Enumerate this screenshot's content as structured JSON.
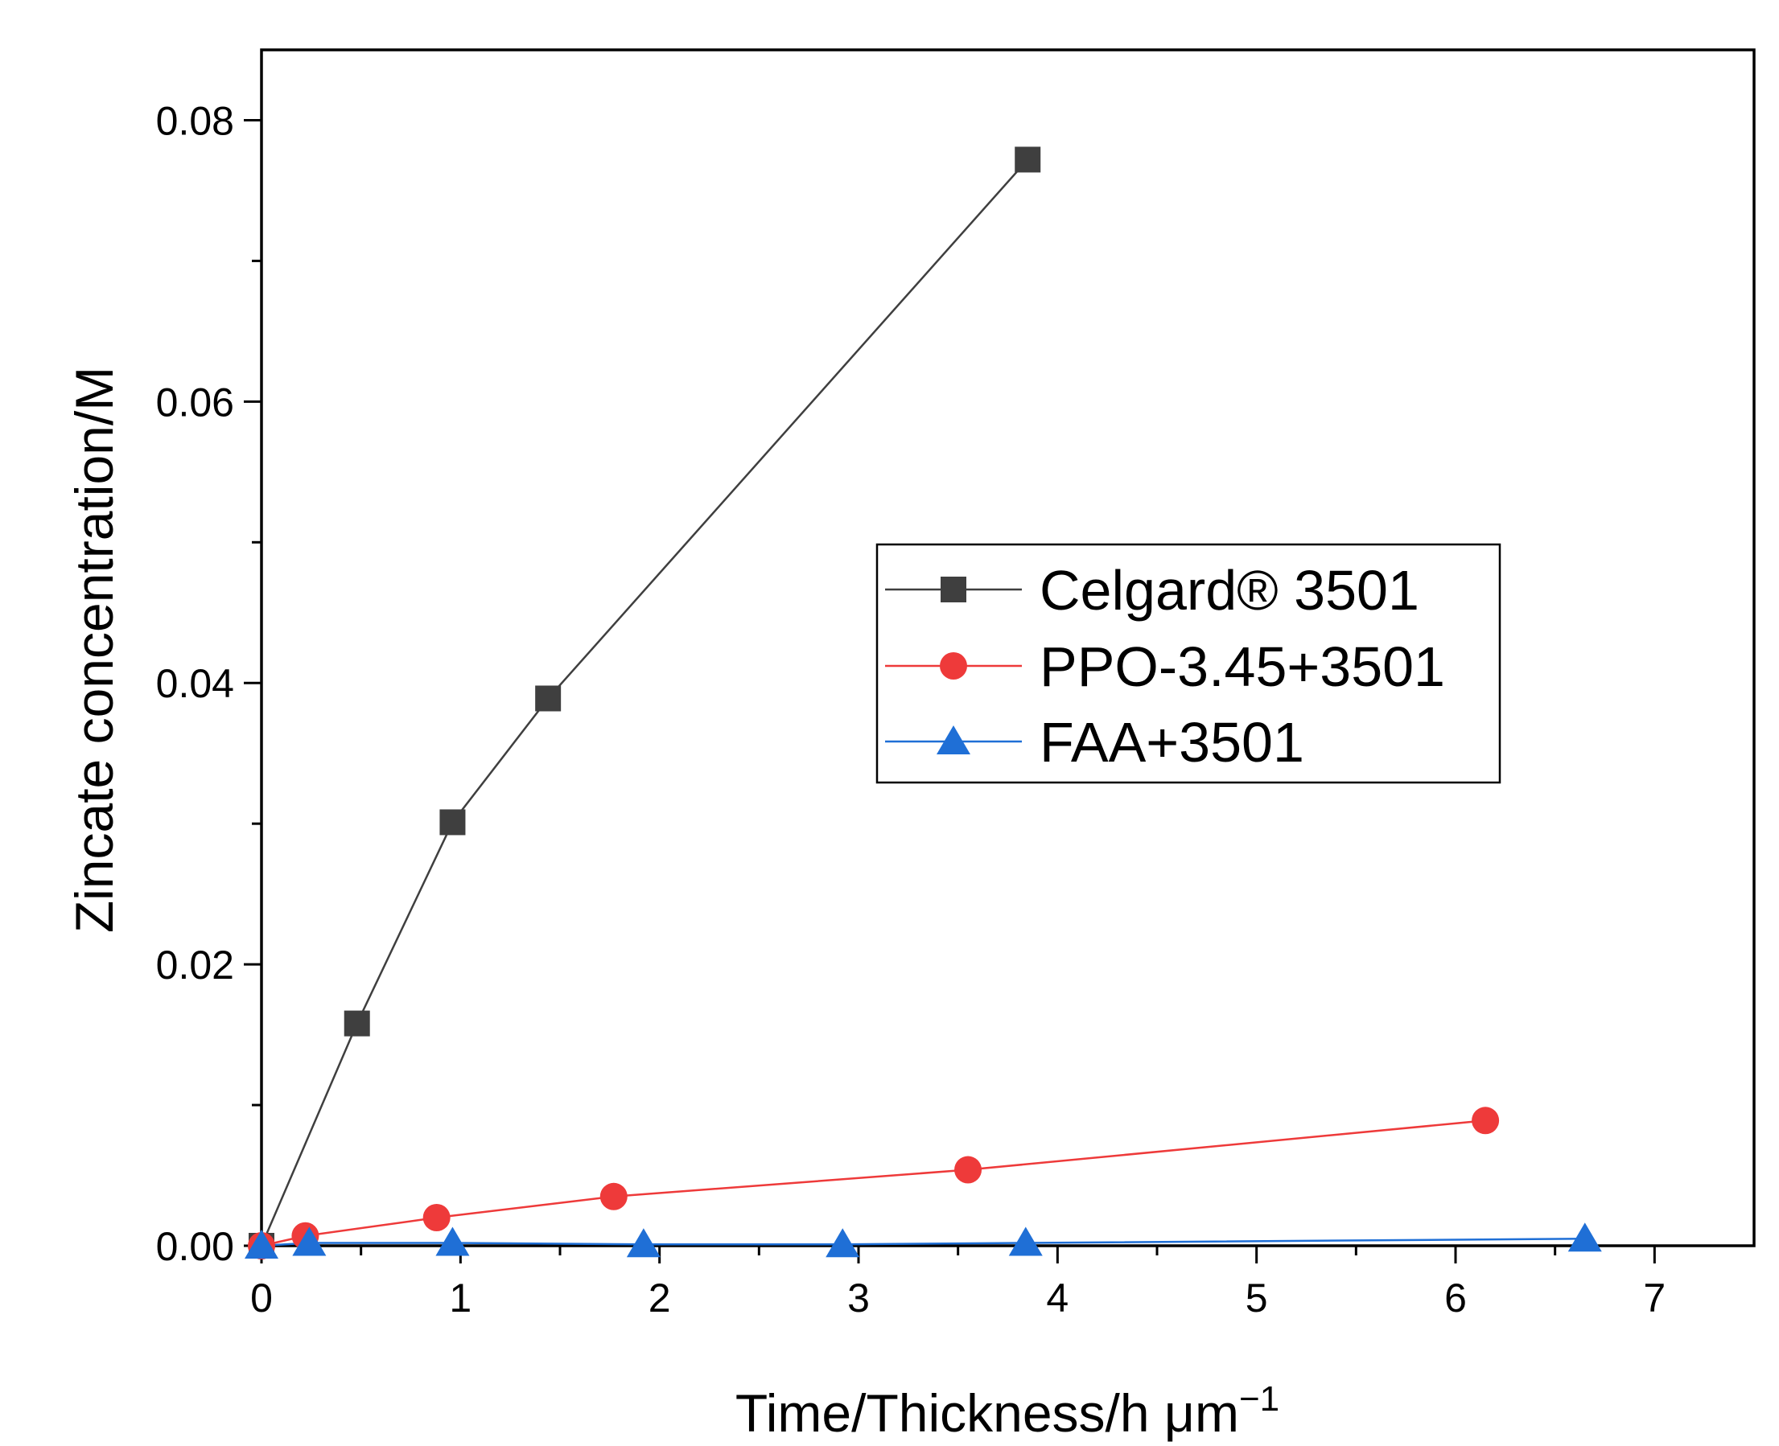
{
  "chart_data": {
    "type": "line",
    "title": "",
    "xlabel": "Time/Thickness/h μm",
    "xlabel_superscript": "−1",
    "ylabel": "Zincate concentration/M",
    "xlim": [
      0,
      7.5
    ],
    "ylim": [
      0,
      0.085
    ],
    "x_ticks": [
      0,
      1,
      2,
      3,
      4,
      5,
      6,
      7
    ],
    "x_tick_labels": [
      "0",
      "1",
      "2",
      "3",
      "4",
      "5",
      "6",
      "7"
    ],
    "y_ticks": [
      0,
      0.02,
      0.04,
      0.06,
      0.08
    ],
    "y_tick_labels": [
      "0.00",
      "0.02",
      "0.04",
      "0.06",
      "0.08"
    ],
    "grid": false,
    "legend_position": "center-right",
    "series": [
      {
        "name": "Celgard® 3501",
        "color": "#3f3f3f",
        "marker": "square",
        "x": [
          0,
          0.48,
          0.96,
          1.44,
          3.85
        ],
        "y": [
          0,
          0.0158,
          0.0301,
          0.0389,
          0.0772
        ]
      },
      {
        "name": "PPO-3.45+3501",
        "color": "#ee3a3a",
        "marker": "circle",
        "x": [
          0,
          0.22,
          0.88,
          1.77,
          3.55,
          6.15
        ],
        "y": [
          0,
          0.0007,
          0.002,
          0.0035,
          0.0054,
          0.0089
        ]
      },
      {
        "name": "FAA+3501",
        "color": "#1f6fd6",
        "marker": "triangle",
        "x": [
          0,
          0.24,
          0.96,
          1.92,
          2.92,
          3.84,
          6.65
        ],
        "y": [
          0,
          0.0002,
          0.0002,
          0.0001,
          0.0001,
          0.0002,
          0.0005
        ]
      }
    ]
  }
}
